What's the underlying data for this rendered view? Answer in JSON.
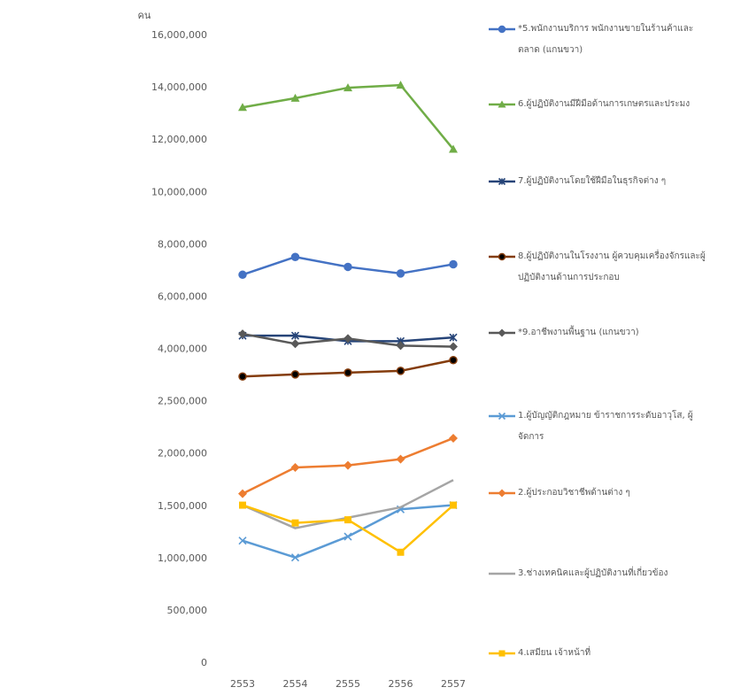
{
  "chart_data": {
    "type": "line",
    "y_label": "คน",
    "categories": [
      "2553",
      "2554",
      "2555",
      "2556",
      "2557"
    ],
    "ylim": [
      0,
      16000000
    ],
    "yticks": [
      0,
      {
        "value": 500000,
        "label": "500,000"
      },
      {
        "value": 1000000,
        "label": "1,000,000"
      },
      {
        "value": 1500000,
        "label": "1,500,000"
      },
      {
        "value": 2000000,
        "label": "2,000,000"
      },
      {
        "value": 2500000,
        "label": "2,500,000"
      },
      {
        "value": 4000000,
        "label": "4,000,000"
      },
      {
        "value": 6000000,
        "label": "6,000,000"
      },
      {
        "value": 8000000,
        "label": "8,000,000"
      },
      {
        "value": 10000000,
        "label": "10,000,000"
      },
      {
        "value": 12000000,
        "label": "12,000,000"
      },
      {
        "value": 14000000,
        "label": "14,000,000"
      },
      {
        "value": 16000000,
        "label": "16,000,000"
      }
    ],
    "grid": false,
    "legend": "right",
    "series": [
      {
        "name": "*5.พนักงานบริการ พนักงานขายในร้านค้าและตลาด (แกนขวา)",
        "color": "#4472c4",
        "marker": "circle",
        "values": [
          6850000,
          7530000,
          7150000,
          6900000,
          7250000
        ]
      },
      {
        "name": "6.ผู้ปฏิบัติงานมีฝีมือด้านการเกษตรและประมง",
        "color": "#70ad47",
        "marker": "triangle",
        "values": [
          13250000,
          13600000,
          14000000,
          14100000,
          11650000
        ]
      },
      {
        "name": "7.ผู้ปฏิบัติงานโดยใช้ฝีมือในธุรกิจต่าง ๆ",
        "color": "#264478",
        "marker": "star",
        "values": [
          4520000,
          4520000,
          4310000,
          4310000,
          4450000
        ]
      },
      {
        "name": "8.ผู้ปฏิบัติงานในโรงงาน ผู้ควบคุมเครื่องจักรและผู้ปฏิบัติงานด้านการประกอบ",
        "color": "#843c0c",
        "marker": "dot",
        "values": [
          3220000,
          3280000,
          3330000,
          3380000,
          3690000
        ]
      },
      {
        "name": "*9.อาชีพงานพื้นฐาน (แกนขวา)",
        "color": "#595959",
        "marker": "diamond",
        "values": [
          4590000,
          4210000,
          4410000,
          4140000,
          4100000
        ]
      },
      {
        "name": "1.ผู้บัญญัติกฎหมาย ข้าราชการระดับอาวุโส, ผู้จัดการ",
        "color": "#5b9bd5",
        "marker": "x",
        "values": [
          1170000,
          1010000,
          1210000,
          1470000,
          1510000
        ]
      },
      {
        "name": "2.ผู้ประกอบวิชาชีพด้านต่าง ๆ",
        "color": "#ed7d31",
        "marker": "diamond",
        "values": [
          1620000,
          1870000,
          1890000,
          1950000,
          2150000
        ]
      },
      {
        "name": "3.ช่างเทคนิคและผู้ปฏิบัติงานที่เกี่ยวข้อง",
        "color": "#a5a5a5",
        "marker": "none",
        "values": [
          1510000,
          1290000,
          1390000,
          1490000,
          1750000
        ]
      },
      {
        "name": "4.เสมียน เจ้าหน้าที่",
        "color": "#ffc000",
        "marker": "square",
        "values": [
          1510000,
          1340000,
          1370000,
          1060000,
          1510000
        ]
      }
    ]
  }
}
